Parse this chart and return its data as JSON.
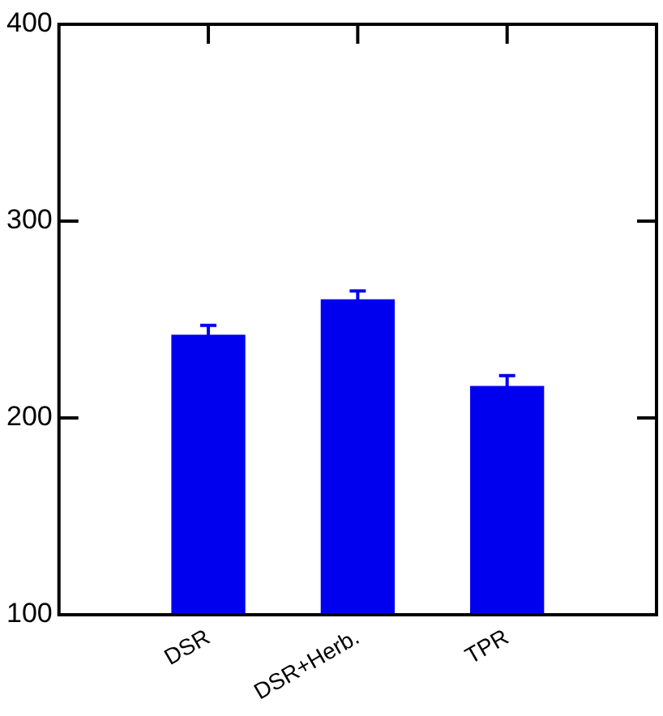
{
  "chart_data": {
    "type": "bar",
    "categories": [
      "DSR",
      "DSR+Herb.",
      "TPR"
    ],
    "values": [
      242,
      260,
      216
    ],
    "errors": [
      5,
      4.5,
      5.5
    ],
    "color": "#0000ee",
    "ylim": [
      100,
      400
    ],
    "yticks": [
      100,
      200,
      300,
      400
    ],
    "grid": false,
    "legend": false
  }
}
